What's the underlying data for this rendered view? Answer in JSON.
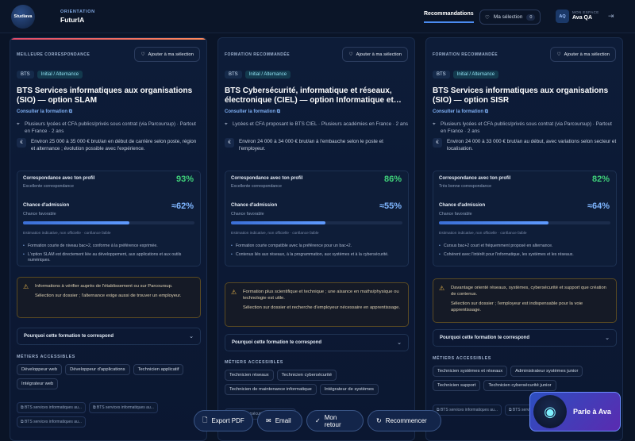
{
  "header": {
    "logo_text": "Studiava",
    "kicker": "ORIENTATION",
    "app_name": "FuturIA",
    "nav_recommendations": "Recommandations",
    "selection_label": "Ma sélection",
    "selection_count": "0",
    "avatar_initials": "AQ",
    "user_kicker": "MON ESPACE",
    "user_name": "Ava QA"
  },
  "cards": [
    {
      "kicker": "MEILLEURE CORRESPONDANCE",
      "add_label": "Ajouter à ma sélection",
      "tags": [
        "BTS",
        "Initial / Alternance"
      ],
      "title": "BTS Services informatiques aux organisations (SIO) — option SLAM",
      "consult": "Consulter la formation",
      "location": "Plusieurs lycées et CFA publics/privés sous contrat (via Parcoursup) · Partout en France · 2 ans",
      "salary": "Environ 25 000 à 35 000 € brut/an en début de carrière selon poste, région et alternance ; évolution possible avec l'expérience.",
      "match_label": "Correspondance avec ton profil",
      "match_sub": "Excellente correspondance",
      "match_value": "93%",
      "admission_label": "Chance d'admission",
      "admission_sub": "Chance favorable",
      "admission_value": "≈62%",
      "admission_fraction": 0.62,
      "estimate_note": "Estimation indicative, non officielle · confiance faible",
      "bullets": [
        "Formation courte de niveau bac+2, conforme à la préférence exprimée.",
        "L'option SLAM est directement liée au développement, aux applications et aux outils numériques."
      ],
      "warnings": [
        "Informations à vérifier auprès de l'établissement ou sur Parcoursup.",
        "Sélection sur dossier ; l'alternance exige aussi de trouver un employeur."
      ],
      "why_label": "Pourquoi cette formation te correspond",
      "jobs_heading": "MÉTIERS ACCESSIBLES",
      "jobs": [
        "Développeur web",
        "Développeur d'applications",
        "Technicien applicatif",
        "Intégrateur web"
      ],
      "links": [
        "BTS services informatiques au...",
        "BTS services informatiques au...",
        "BTS services informatiques au..."
      ]
    },
    {
      "kicker": "FORMATION RECOMMANDÉE",
      "add_label": "Ajouter à ma sélection",
      "tags": [
        "BTS",
        "Initial / Alternance"
      ],
      "title": "BTS Cybersécurité, informatique et réseaux, électronique (CIEL) — option Informatique et…",
      "consult": "Consulter la formation",
      "location": "Lycées et CFA proposant le BTS CIEL · Plusieurs académies en France · 2 ans",
      "salary": "Environ 24 000 à 34 000 € brut/an à l'embauche selon le poste et l'employeur.",
      "match_label": "Correspondance avec ton profil",
      "match_sub": "Excellente correspondance",
      "match_value": "86%",
      "admission_label": "Chance d'admission",
      "admission_sub": "Chance favorable",
      "admission_value": "≈55%",
      "admission_fraction": 0.55,
      "estimate_note": "Estimation indicative, non officielle · confiance faible",
      "bullets": [
        "Formation courte compatible avec la préférence pour un bac+2.",
        "Contenus liés aux réseaux, à la programmation, aux systèmes et à la cybersécurité."
      ],
      "warnings": [
        "Formation plus scientifique et technique ; une aisance en maths/physique ou technologie est utile.",
        "Sélection sur dossier et recherche d'employeur nécessaire en apprentissage."
      ],
      "why_label": "Pourquoi cette formation te correspond",
      "jobs_heading": "MÉTIERS ACCESSIBLES",
      "jobs": [
        "Technicien réseaux",
        "Technicien cybersécurité",
        "Technicien de maintenance informatique",
        "Intégrateur de systèmes"
      ],
      "links": [
        "BTS cybersécurité, informatique..."
      ]
    },
    {
      "kicker": "FORMATION RECOMMANDÉE",
      "add_label": "Ajouter à ma sélection",
      "tags": [
        "BTS",
        "Initial / Alternance"
      ],
      "title": "BTS Services informatiques aux organisations (SIO) — option SISR",
      "consult": "Consulter la formation",
      "location": "Plusieurs lycées et CFA publics/privés sous contrat (via Parcoursup) · Partout en France · 2 ans",
      "salary": "Environ 24 000 à 33 000 € brut/an au début, avec variations selon secteur et localisation.",
      "match_label": "Correspondance avec ton profil",
      "match_sub": "Très bonne correspondance",
      "match_value": "82%",
      "admission_label": "Chance d'admission",
      "admission_sub": "Chance favorable",
      "admission_value": "≈64%",
      "admission_fraction": 0.64,
      "estimate_note": "Estimation indicative, non officielle · confiance faible",
      "bullets": [
        "Cursus bac+2 court et fréquemment proposé en alternance.",
        "Cohérent avec l'intérêt pour l'informatique, les systèmes et les réseaux."
      ],
      "warnings": [
        "Davantage orienté réseaux, systèmes, cybersécurité et support que création de contenus.",
        "Sélection sur dossier ; l'employeur est indispensable pour la voie apprentissage."
      ],
      "why_label": "Pourquoi cette formation te correspond",
      "jobs_heading": "MÉTIERS ACCESSIBLES",
      "jobs": [
        "Technicien systèmes et réseaux",
        "Administrateur systèmes junior",
        "Technicien support",
        "Technicien cybersécurité junior"
      ],
      "links": [
        "BTS services informatiques au...",
        "BTS services informatiques au..."
      ]
    }
  ],
  "actions": {
    "export": "Export PDF",
    "email": "Email",
    "feedback": "Mon retour",
    "restart": "Recommencer"
  },
  "assistant": {
    "label": "Parle à Ava"
  },
  "colors": {
    "accent": "#4b8bf0",
    "match": "#3fd07a",
    "admission": "#7fb6ff",
    "warning": "#e2b04a"
  }
}
